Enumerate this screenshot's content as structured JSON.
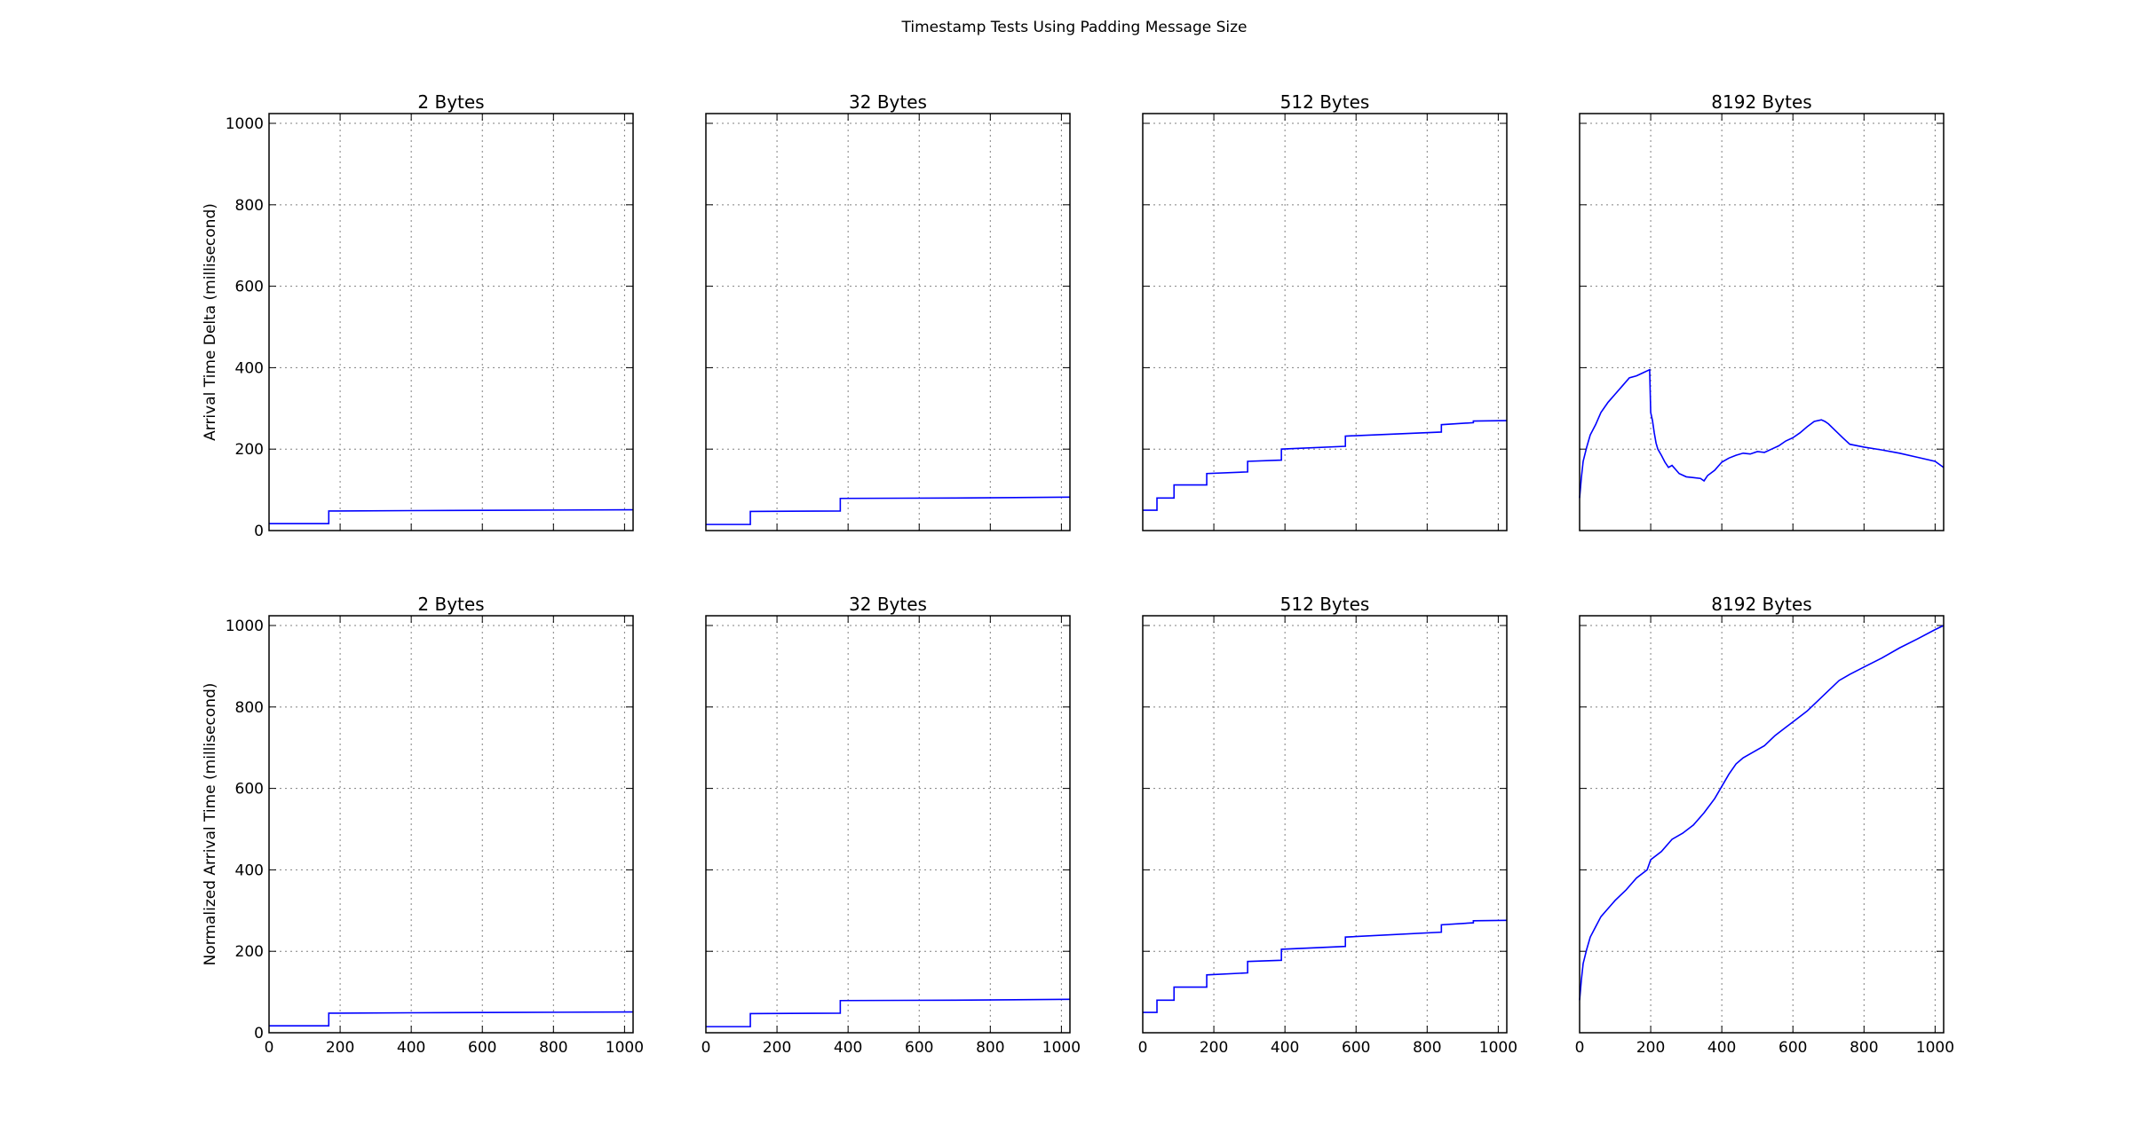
{
  "figure": {
    "title": "Timestamp Tests Using Padding Message Size"
  },
  "style": {
    "line_color": "#0000ff",
    "axis_color": "#000000",
    "grid_color": "#808080",
    "background": "#ffffff"
  },
  "chart_data": [
    {
      "type": "line",
      "title": "2 Bytes",
      "ylabel": "Arrival Time Delta (millisecond)",
      "xlim": [
        0,
        1024
      ],
      "ylim": [
        0,
        1024
      ],
      "xticks": [
        0,
        200,
        400,
        600,
        800,
        1000
      ],
      "yticks": [
        0,
        200,
        400,
        600,
        800,
        1000
      ],
      "show_xticklabels": false,
      "show_yticklabels": true,
      "grid": true,
      "x": [
        0,
        168,
        168,
        400,
        700,
        1024
      ],
      "y": [
        17,
        17,
        48,
        49,
        50,
        51
      ]
    },
    {
      "type": "line",
      "title": "32 Bytes",
      "ylabel": "",
      "xlim": [
        0,
        1024
      ],
      "ylim": [
        0,
        1024
      ],
      "xticks": [
        0,
        200,
        400,
        600,
        800,
        1000
      ],
      "yticks": [
        0,
        200,
        400,
        600,
        800,
        1000
      ],
      "show_xticklabels": false,
      "show_yticklabels": false,
      "grid": true,
      "x": [
        0,
        125,
        125,
        378,
        378,
        700,
        1024
      ],
      "y": [
        15,
        15,
        47,
        48,
        79,
        80,
        82
      ]
    },
    {
      "type": "line",
      "title": "512 Bytes",
      "ylabel": "",
      "xlim": [
        0,
        1024
      ],
      "ylim": [
        0,
        1024
      ],
      "xticks": [
        0,
        200,
        400,
        600,
        800,
        1000
      ],
      "yticks": [
        0,
        200,
        400,
        600,
        800,
        1000
      ],
      "show_xticklabels": false,
      "show_yticklabels": false,
      "grid": true,
      "x": [
        0,
        40,
        40,
        88,
        88,
        180,
        180,
        295,
        295,
        390,
        390,
        570,
        570,
        840,
        840,
        930,
        930,
        1024
      ],
      "y": [
        50,
        50,
        80,
        80,
        112,
        112,
        140,
        144,
        170,
        173,
        200,
        207,
        232,
        242,
        260,
        265,
        269,
        270
      ]
    },
    {
      "type": "line",
      "title": "8192 Bytes",
      "ylabel": "",
      "xlim": [
        0,
        1024
      ],
      "ylim": [
        0,
        1024
      ],
      "xticks": [
        0,
        200,
        400,
        600,
        800,
        1000
      ],
      "yticks": [
        0,
        200,
        400,
        600,
        800,
        1000
      ],
      "show_xticklabels": false,
      "show_yticklabels": false,
      "grid": true,
      "x": [
        0,
        5,
        10,
        20,
        30,
        45,
        60,
        80,
        100,
        120,
        140,
        160,
        180,
        197,
        200,
        205,
        210,
        215,
        220,
        230,
        240,
        250,
        260,
        270,
        280,
        300,
        320,
        340,
        350,
        360,
        380,
        400,
        420,
        440,
        460,
        480,
        500,
        520,
        540,
        560,
        580,
        600,
        620,
        640,
        660,
        680,
        690,
        700,
        720,
        740,
        760,
        800,
        850,
        900,
        950,
        1000,
        1024
      ],
      "y": [
        80,
        130,
        170,
        205,
        235,
        260,
        290,
        315,
        335,
        355,
        375,
        380,
        388,
        395,
        290,
        270,
        240,
        215,
        200,
        185,
        168,
        155,
        160,
        150,
        140,
        132,
        130,
        128,
        122,
        135,
        148,
        168,
        178,
        185,
        190,
        188,
        194,
        192,
        200,
        208,
        220,
        228,
        240,
        255,
        268,
        272,
        268,
        262,
        245,
        228,
        212,
        205,
        198,
        190,
        180,
        170,
        155
      ]
    },
    {
      "type": "line",
      "title": "2 Bytes",
      "ylabel": "Normalized Arrival Time (millisecond)",
      "xlim": [
        0,
        1024
      ],
      "ylim": [
        0,
        1024
      ],
      "xticks": [
        0,
        200,
        400,
        600,
        800,
        1000
      ],
      "yticks": [
        0,
        200,
        400,
        600,
        800,
        1000
      ],
      "show_xticklabels": true,
      "show_yticklabels": true,
      "grid": true,
      "x": [
        0,
        168,
        168,
        400,
        700,
        1024
      ],
      "y": [
        17,
        17,
        48,
        49,
        50,
        51
      ]
    },
    {
      "type": "line",
      "title": "32 Bytes",
      "ylabel": "",
      "xlim": [
        0,
        1024
      ],
      "ylim": [
        0,
        1024
      ],
      "xticks": [
        0,
        200,
        400,
        600,
        800,
        1000
      ],
      "yticks": [
        0,
        200,
        400,
        600,
        800,
        1000
      ],
      "show_xticklabels": true,
      "show_yticklabels": false,
      "grid": true,
      "x": [
        0,
        125,
        125,
        378,
        378,
        700,
        1024
      ],
      "y": [
        15,
        15,
        47,
        48,
        79,
        80,
        82
      ]
    },
    {
      "type": "line",
      "title": "512 Bytes",
      "ylabel": "",
      "xlim": [
        0,
        1024
      ],
      "ylim": [
        0,
        1024
      ],
      "xticks": [
        0,
        200,
        400,
        600,
        800,
        1000
      ],
      "yticks": [
        0,
        200,
        400,
        600,
        800,
        1000
      ],
      "show_xticklabels": true,
      "show_yticklabels": false,
      "grid": true,
      "x": [
        0,
        40,
        40,
        88,
        88,
        180,
        180,
        295,
        295,
        390,
        390,
        570,
        570,
        840,
        840,
        930,
        930,
        1024
      ],
      "y": [
        50,
        50,
        80,
        80,
        112,
        112,
        142,
        147,
        175,
        178,
        205,
        212,
        235,
        247,
        265,
        270,
        275,
        276
      ]
    },
    {
      "type": "line",
      "title": "8192 Bytes",
      "ylabel": "",
      "xlim": [
        0,
        1024
      ],
      "ylim": [
        0,
        1024
      ],
      "xticks": [
        0,
        200,
        400,
        600,
        800,
        1000
      ],
      "yticks": [
        0,
        200,
        400,
        600,
        800,
        1000
      ],
      "show_xticklabels": true,
      "show_yticklabels": false,
      "grid": true,
      "x": [
        0,
        5,
        10,
        20,
        30,
        45,
        60,
        80,
        100,
        130,
        160,
        190,
        200,
        230,
        260,
        290,
        320,
        350,
        380,
        400,
        420,
        440,
        460,
        490,
        520,
        550,
        580,
        610,
        640,
        670,
        700,
        730,
        760,
        800,
        850,
        900,
        950,
        1000,
        1024
      ],
      "y": [
        80,
        130,
        170,
        205,
        235,
        260,
        285,
        305,
        325,
        350,
        380,
        400,
        425,
        445,
        475,
        490,
        510,
        540,
        575,
        605,
        635,
        660,
        675,
        690,
        705,
        730,
        750,
        770,
        790,
        815,
        840,
        865,
        880,
        898,
        920,
        945,
        967,
        990,
        1000
      ]
    }
  ]
}
